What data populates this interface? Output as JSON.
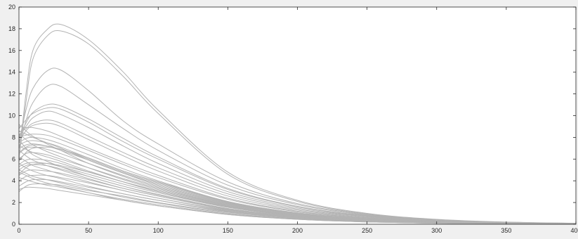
{
  "chart_data": {
    "type": "line",
    "title": "",
    "xlabel": "",
    "ylabel": "",
    "xlim": [
      0,
      400
    ],
    "ylim": [
      0,
      20
    ],
    "xticks": [
      0,
      50,
      100,
      150,
      200,
      250,
      300,
      350,
      400
    ],
    "yticks": [
      0,
      2,
      4,
      6,
      8,
      10,
      12,
      14,
      16,
      18,
      20
    ],
    "grid": false,
    "legend": "none",
    "line_color": "#b3b3b3",
    "x": [
      0,
      5,
      10,
      20,
      30,
      50,
      75,
      100,
      150,
      200,
      250,
      300,
      350,
      400
    ],
    "series": [
      {
        "values": [
          6.0,
          12.0,
          16.0,
          17.9,
          18.4,
          17.0,
          14.0,
          10.5,
          4.8,
          2.2,
          1.0,
          0.45,
          0.2,
          0.1
        ]
      },
      {
        "values": [
          6.0,
          11.2,
          15.2,
          17.3,
          17.8,
          16.6,
          13.6,
          10.2,
          4.6,
          2.1,
          0.95,
          0.42,
          0.19,
          0.09
        ]
      },
      {
        "values": [
          7.5,
          10.5,
          12.5,
          14.1,
          14.2,
          12.3,
          9.5,
          7.4,
          3.9,
          1.9,
          0.9,
          0.4,
          0.18,
          0.08
        ]
      },
      {
        "values": [
          7.0,
          9.5,
          11.2,
          12.7,
          12.7,
          11.0,
          8.8,
          6.8,
          3.6,
          1.8,
          0.85,
          0.38,
          0.17,
          0.08
        ]
      },
      {
        "values": [
          8.0,
          9.3,
          10.3,
          11.0,
          10.9,
          9.7,
          7.9,
          6.2,
          3.3,
          1.65,
          0.8,
          0.36,
          0.16,
          0.07
        ]
      },
      {
        "values": [
          8.2,
          9.0,
          9.8,
          10.4,
          10.1,
          8.9,
          7.2,
          5.6,
          3.0,
          1.5,
          0.72,
          0.32,
          0.14,
          0.06
        ]
      },
      {
        "values": [
          8.5,
          8.8,
          9.3,
          9.6,
          9.3,
          8.1,
          6.6,
          5.2,
          2.8,
          1.4,
          0.68,
          0.3,
          0.13,
          0.06
        ]
      },
      {
        "values": [
          9.0,
          8.9,
          8.9,
          8.6,
          8.1,
          7.0,
          5.7,
          4.5,
          2.4,
          1.2,
          0.58,
          0.26,
          0.11,
          0.05
        ]
      },
      {
        "values": [
          8.0,
          8.2,
          8.3,
          8.2,
          7.8,
          6.8,
          5.5,
          4.3,
          2.3,
          1.15,
          0.55,
          0.25,
          0.11,
          0.05
        ]
      },
      {
        "values": [
          7.5,
          7.9,
          8.0,
          7.8,
          7.4,
          6.4,
          5.1,
          4.0,
          2.1,
          1.05,
          0.5,
          0.22,
          0.1,
          0.04
        ]
      },
      {
        "values": [
          8.6,
          8.3,
          8.0,
          7.5,
          7.0,
          5.9,
          4.7,
          3.7,
          1.95,
          0.95,
          0.46,
          0.2,
          0.09,
          0.04
        ]
      },
      {
        "values": [
          7.0,
          7.3,
          7.4,
          7.2,
          6.8,
          5.9,
          4.7,
          3.6,
          1.9,
          0.95,
          0.45,
          0.2,
          0.09,
          0.04
        ]
      },
      {
        "values": [
          6.5,
          7.0,
          7.1,
          6.9,
          6.5,
          5.6,
          4.5,
          3.5,
          1.85,
          0.9,
          0.43,
          0.19,
          0.08,
          0.04
        ]
      },
      {
        "values": [
          8.3,
          7.8,
          7.3,
          6.7,
          6.2,
          5.2,
          4.1,
          3.2,
          1.7,
          0.85,
          0.4,
          0.18,
          0.08,
          0.03
        ]
      },
      {
        "values": [
          6.0,
          6.5,
          6.6,
          6.4,
          6.0,
          5.2,
          4.2,
          3.3,
          1.75,
          0.85,
          0.4,
          0.18,
          0.08,
          0.03
        ]
      },
      {
        "values": [
          7.2,
          6.9,
          6.6,
          6.2,
          5.8,
          4.9,
          3.9,
          3.0,
          1.6,
          0.8,
          0.38,
          0.17,
          0.07,
          0.03
        ]
      },
      {
        "values": [
          5.5,
          5.9,
          6.0,
          5.9,
          5.6,
          4.8,
          3.9,
          3.0,
          1.6,
          0.78,
          0.37,
          0.16,
          0.07,
          0.03
        ]
      },
      {
        "values": [
          7.8,
          7.0,
          6.4,
          5.8,
          5.3,
          4.4,
          3.5,
          2.7,
          1.45,
          0.72,
          0.34,
          0.15,
          0.07,
          0.03
        ]
      },
      {
        "values": [
          5.0,
          5.4,
          5.5,
          5.4,
          5.1,
          4.4,
          3.5,
          2.75,
          1.45,
          0.72,
          0.34,
          0.15,
          0.07,
          0.03
        ]
      },
      {
        "values": [
          6.8,
          6.3,
          5.9,
          5.4,
          5.0,
          4.2,
          3.3,
          2.6,
          1.35,
          0.66,
          0.31,
          0.14,
          0.06,
          0.03
        ]
      },
      {
        "values": [
          4.5,
          4.9,
          5.0,
          4.9,
          4.7,
          4.1,
          3.3,
          2.6,
          1.4,
          0.7,
          0.33,
          0.15,
          0.06,
          0.03
        ]
      },
      {
        "values": [
          6.2,
          5.8,
          5.4,
          5.0,
          4.6,
          3.9,
          3.1,
          2.4,
          1.25,
          0.62,
          0.29,
          0.13,
          0.06,
          0.02
        ]
      },
      {
        "values": [
          4.0,
          4.4,
          4.5,
          4.5,
          4.3,
          3.8,
          3.1,
          2.4,
          1.3,
          0.65,
          0.31,
          0.14,
          0.06,
          0.03
        ]
      },
      {
        "values": [
          5.6,
          5.2,
          4.9,
          4.5,
          4.2,
          3.5,
          2.8,
          2.2,
          1.15,
          0.57,
          0.27,
          0.12,
          0.05,
          0.02
        ]
      },
      {
        "values": [
          3.5,
          3.9,
          4.1,
          4.1,
          3.9,
          3.4,
          2.8,
          2.2,
          1.2,
          0.6,
          0.28,
          0.13,
          0.06,
          0.02
        ]
      },
      {
        "values": [
          5.0,
          4.7,
          4.4,
          4.1,
          3.8,
          3.2,
          2.5,
          1.95,
          1.02,
          0.5,
          0.24,
          0.11,
          0.05,
          0.02
        ]
      },
      {
        "values": [
          3.0,
          3.5,
          3.7,
          3.7,
          3.6,
          3.1,
          2.6,
          2.0,
          1.1,
          0.55,
          0.26,
          0.12,
          0.05,
          0.02
        ]
      },
      {
        "values": [
          4.3,
          4.1,
          3.9,
          3.6,
          3.4,
          2.9,
          2.3,
          1.8,
          0.95,
          0.47,
          0.22,
          0.1,
          0.04,
          0.02
        ]
      },
      {
        "values": [
          4.8,
          4.5,
          4.2,
          3.8,
          3.5,
          2.9,
          2.2,
          1.7,
          0.9,
          0.45,
          0.21,
          0.09,
          0.04,
          0.02
        ]
      },
      {
        "values": [
          3.2,
          3.4,
          3.4,
          3.3,
          3.1,
          2.7,
          2.2,
          1.7,
          0.9,
          0.45,
          0.21,
          0.09,
          0.04,
          0.02
        ]
      },
      {
        "values": [
          5.3,
          5.6,
          5.7,
          5.6,
          5.3,
          4.6,
          3.7,
          2.9,
          1.55,
          0.76,
          0.36,
          0.16,
          0.07,
          0.03
        ]
      },
      {
        "values": [
          6.6,
          7.1,
          7.3,
          7.2,
          6.9,
          6.0,
          4.8,
          3.8,
          2.0,
          0.98,
          0.47,
          0.21,
          0.09,
          0.04
        ]
      },
      {
        "values": [
          7.6,
          8.6,
          9.1,
          9.3,
          9.0,
          7.8,
          6.3,
          4.9,
          2.6,
          1.3,
          0.62,
          0.28,
          0.12,
          0.05
        ]
      },
      {
        "values": [
          5.8,
          6.6,
          7.0,
          7.1,
          6.9,
          6.1,
          4.9,
          3.9,
          2.1,
          1.05,
          0.5,
          0.22,
          0.1,
          0.04
        ]
      },
      {
        "values": [
          9.2,
          8.6,
          8.1,
          7.4,
          6.8,
          5.6,
          4.4,
          3.4,
          1.8,
          0.9,
          0.43,
          0.19,
          0.08,
          0.04
        ]
      },
      {
        "values": [
          4.6,
          5.2,
          5.5,
          5.6,
          5.4,
          4.8,
          3.9,
          3.1,
          1.65,
          0.82,
          0.39,
          0.17,
          0.08,
          0.03
        ]
      },
      {
        "values": [
          7.3,
          7.6,
          7.7,
          7.5,
          7.1,
          6.1,
          4.9,
          3.9,
          2.05,
          1.0,
          0.48,
          0.21,
          0.09,
          0.04
        ]
      },
      {
        "values": [
          8.8,
          9.6,
          10.2,
          10.7,
          10.6,
          9.4,
          7.6,
          6.0,
          3.2,
          1.6,
          0.77,
          0.34,
          0.15,
          0.07
        ]
      }
    ]
  }
}
